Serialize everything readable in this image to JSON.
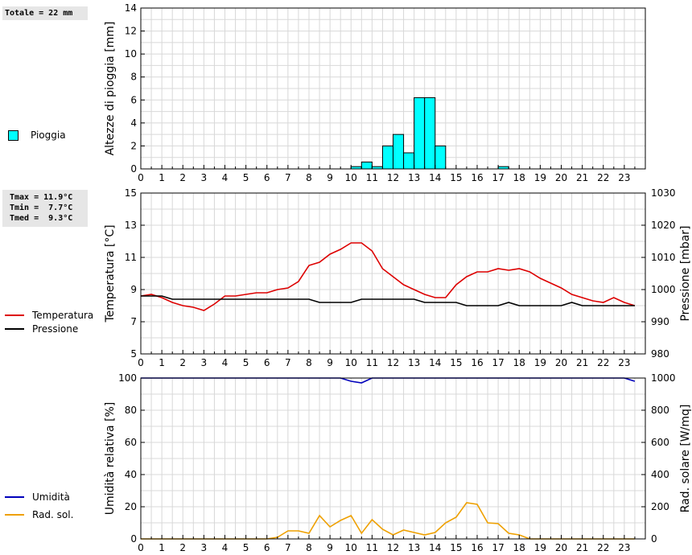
{
  "summary": {
    "total_line": "Totale = 22 mm",
    "tmax_line": "Tmax = 11.9°C",
    "tmin_line": "Tmin =  7.7°C",
    "tmed_line": "Tmed =  9.3°C"
  },
  "legend": {
    "rain": "Pioggia",
    "temperature": "Temperatura",
    "pressure": "Pressione",
    "humidity": "Umidità",
    "radiation": "Rad. sol."
  },
  "colors": {
    "rain_fill": "#00ffff",
    "temperature": "#dd0000",
    "pressure": "#000000",
    "humidity": "#0000bb",
    "radiation": "#eea000",
    "grid": "#d8d8d8"
  },
  "chart_data": [
    {
      "type": "bar",
      "ylabel": "Altezze di pioggia [mm]",
      "ylim": [
        0,
        14
      ],
      "yticks": [
        0,
        2,
        4,
        6,
        8,
        10,
        12,
        14
      ],
      "x_ticks": [
        "0",
        "1",
        "2",
        "3",
        "4",
        "5",
        "6",
        "7",
        "8",
        "9",
        "10",
        "11",
        "12",
        "13",
        "14",
        "15",
        "16",
        "17",
        "18",
        "19",
        "20",
        "21",
        "22",
        "23"
      ],
      "grid": true,
      "legend_position": "left",
      "series": [
        {
          "name": "Pioggia",
          "bars": [
            {
              "x": 10.0,
              "value": 0.2
            },
            {
              "x": 10.5,
              "value": 0.6
            },
            {
              "x": 11.0,
              "value": 0.2
            },
            {
              "x": 11.5,
              "value": 2.0
            },
            {
              "x": 12.0,
              "value": 3.0
            },
            {
              "x": 12.5,
              "value": 1.4
            },
            {
              "x": 13.0,
              "value": 6.2
            },
            {
              "x": 13.5,
              "value": 6.2
            },
            {
              "x": 14.0,
              "value": 2.0
            },
            {
              "x": 17.0,
              "value": 0.2
            }
          ]
        }
      ]
    },
    {
      "type": "line",
      "ylabel": "Temperatura [°C]",
      "ylim": [
        5,
        15
      ],
      "yticks": [
        5,
        7,
        9,
        11,
        13,
        15
      ],
      "y2label": "Pressione [mbar]",
      "y2lim": [
        980,
        1030
      ],
      "y2ticks": [
        980,
        990,
        1000,
        1010,
        1020,
        1030
      ],
      "x_ticks": [
        "0",
        "1",
        "2",
        "3",
        "4",
        "5",
        "6",
        "7",
        "8",
        "9",
        "10",
        "11",
        "12",
        "13",
        "14",
        "15",
        "16",
        "17",
        "18",
        "19",
        "20",
        "21",
        "22",
        "23"
      ],
      "grid": true,
      "legend_position": "left",
      "series": [
        {
          "name": "Temperatura",
          "axis": "left",
          "x": [
            0,
            0.5,
            1,
            1.5,
            2,
            2.5,
            3,
            3.5,
            4,
            4.5,
            5,
            5.5,
            6,
            6.5,
            7,
            7.5,
            8,
            8.5,
            9,
            9.5,
            10,
            10.5,
            11,
            11.5,
            12,
            12.5,
            13,
            13.5,
            14,
            14.5,
            15,
            15.5,
            16,
            16.5,
            17,
            17.5,
            18,
            18.5,
            19,
            19.5,
            20,
            20.5,
            21,
            21.5,
            22,
            22.5,
            23,
            23.5
          ],
          "y": [
            8.6,
            8.7,
            8.5,
            8.2,
            8.0,
            7.9,
            7.7,
            8.1,
            8.6,
            8.6,
            8.7,
            8.8,
            8.8,
            9.0,
            9.1,
            9.5,
            10.5,
            10.7,
            11.2,
            11.5,
            11.9,
            11.9,
            11.4,
            10.3,
            9.8,
            9.3,
            9.0,
            8.7,
            8.5,
            8.5,
            9.3,
            9.8,
            10.1,
            10.1,
            10.3,
            10.2,
            10.3,
            10.1,
            9.7,
            9.4,
            9.1,
            8.7,
            8.5,
            8.3,
            8.2,
            8.5,
            8.2,
            8.0
          ]
        },
        {
          "name": "Pressione",
          "axis": "right",
          "x": [
            0,
            0.5,
            1,
            1.5,
            2,
            2.5,
            3,
            3.5,
            4,
            4.5,
            5,
            5.5,
            6,
            6.5,
            7,
            7.5,
            8,
            8.5,
            9,
            9.5,
            10,
            10.5,
            11,
            11.5,
            12,
            12.5,
            13,
            13.5,
            14,
            14.5,
            15,
            15.5,
            16,
            16.5,
            17,
            17.5,
            18,
            18.5,
            19,
            19.5,
            20,
            20.5,
            21,
            21.5,
            22,
            22.5,
            23,
            23.5
          ],
          "y": [
            998,
            998,
            998,
            997,
            997,
            997,
            997,
            997,
            997,
            997,
            997,
            997,
            997,
            997,
            997,
            997,
            997,
            996,
            996,
            996,
            996,
            997,
            997,
            997,
            997,
            997,
            997,
            996,
            996,
            996,
            996,
            995,
            995,
            995,
            995,
            996,
            995,
            995,
            995,
            995,
            995,
            996,
            995,
            995,
            995,
            995,
            995,
            995
          ]
        }
      ]
    },
    {
      "type": "line",
      "ylabel": "Umidità relativa [%]",
      "ylim": [
        0,
        100
      ],
      "yticks": [
        0,
        20,
        40,
        60,
        80,
        100
      ],
      "y2label": "Rad. solare [W/mq]",
      "y2lim": [
        0,
        1000
      ],
      "y2ticks": [
        0,
        200,
        400,
        600,
        800,
        1000
      ],
      "x_ticks": [
        "0",
        "1",
        "2",
        "3",
        "4",
        "5",
        "6",
        "7",
        "8",
        "9",
        "10",
        "11",
        "12",
        "13",
        "14",
        "15",
        "16",
        "17",
        "18",
        "19",
        "20",
        "21",
        "22",
        "23"
      ],
      "grid": true,
      "legend_position": "left",
      "series": [
        {
          "name": "Umidità",
          "axis": "left",
          "x": [
            0,
            9.5,
            10,
            10.5,
            11,
            23,
            23.5
          ],
          "y": [
            100,
            100,
            98,
            97,
            100,
            100,
            98
          ]
        },
        {
          "name": "Rad. sol.",
          "axis": "right",
          "x": [
            0,
            0.5,
            1,
            1.5,
            2,
            2.5,
            3,
            3.5,
            4,
            4.5,
            5,
            5.5,
            6,
            6.5,
            7,
            7.5,
            8,
            8.5,
            9,
            9.5,
            10,
            10.5,
            11,
            11.5,
            12,
            12.5,
            13,
            13.5,
            14,
            14.5,
            15,
            15.5,
            16,
            16.5,
            17,
            17.5,
            18,
            18.5,
            19,
            19.5,
            20,
            20.5,
            21,
            21.5,
            22,
            22.5,
            23,
            23.5
          ],
          "y": [
            0,
            0,
            0,
            0,
            0,
            0,
            0,
            0,
            0,
            0,
            0,
            0,
            0,
            10,
            50,
            50,
            35,
            145,
            75,
            115,
            145,
            35,
            120,
            60,
            25,
            55,
            40,
            25,
            40,
            100,
            135,
            225,
            215,
            100,
            95,
            35,
            25,
            0,
            0,
            0,
            0,
            0,
            0,
            0,
            0,
            0,
            0,
            0
          ]
        }
      ]
    }
  ]
}
